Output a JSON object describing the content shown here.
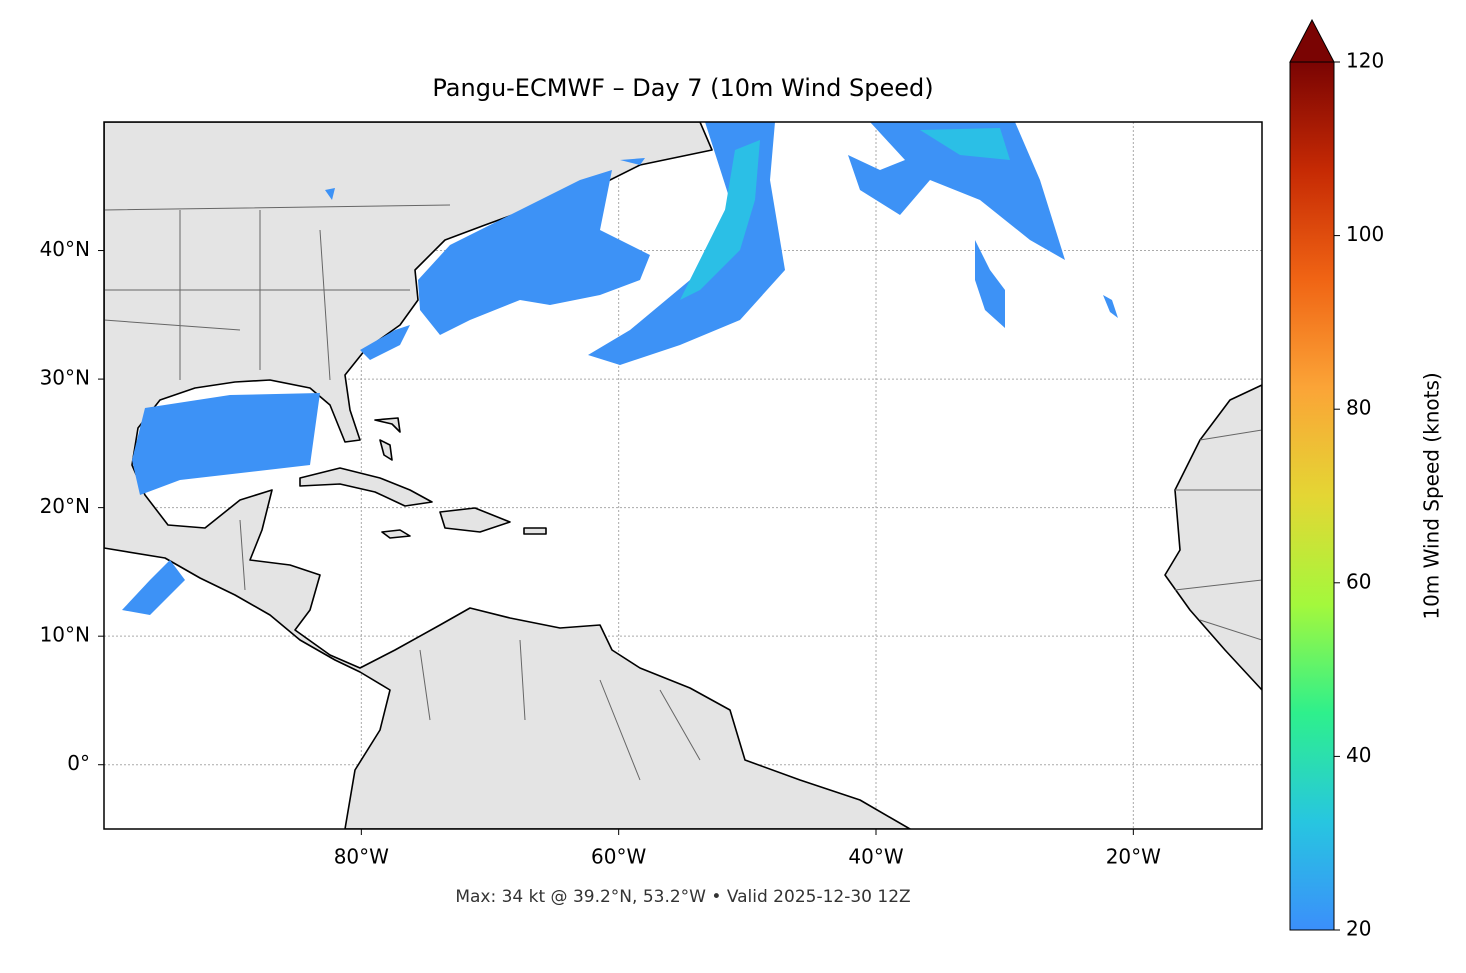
{
  "chart_data": {
    "type": "map",
    "title": "Pangu-ECMWF – Day 7 (10m Wind Speed)",
    "footer": "Max: 34 kt @ 39.2°N, 53.2°W • Valid 2025-12-30 12Z",
    "xlim": [
      -100,
      -10
    ],
    "ylim": [
      -5,
      50
    ],
    "xticks": [
      {
        "value": -80,
        "label": "80°W"
      },
      {
        "value": -60,
        "label": "60°W"
      },
      {
        "value": -40,
        "label": "40°W"
      },
      {
        "value": -20,
        "label": "20°W"
      }
    ],
    "yticks": [
      {
        "value": 0,
        "label": "0°"
      },
      {
        "value": 10,
        "label": "10°N"
      },
      {
        "value": 20,
        "label": "20°N"
      },
      {
        "value": 30,
        "label": "30°N"
      },
      {
        "value": 40,
        "label": "40°N"
      }
    ],
    "grid": true,
    "colorbar": {
      "label": "10m Wind Speed (knots)",
      "lim": [
        20,
        120
      ],
      "ticks": [
        20,
        40,
        60,
        80,
        100,
        120
      ],
      "colormap": [
        "#3b8ffb",
        "#27c6e0",
        "#2ef08c",
        "#a4f83c",
        "#e4d634",
        "#fba437",
        "#f06414",
        "#c62a04",
        "#7a0403"
      ],
      "extend_color": "#7a0403"
    }
  }
}
